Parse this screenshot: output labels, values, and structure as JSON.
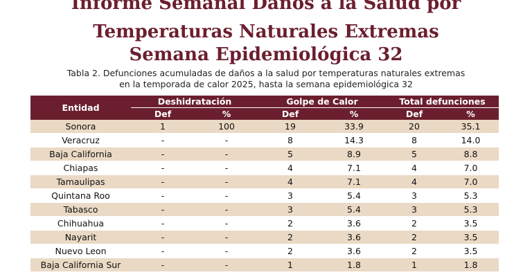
{
  "title": {
    "line1": "Informe Semanal  Daños a la Salud por",
    "line2": "Temperaturas Naturales Extremas",
    "line3": "Semana Epidemiológica 32"
  },
  "caption": {
    "line1": "Tabla 2.  Defunciones acumuladas de daños a la salud por temperaturas naturales extremas",
    "line2": "en la temporada de calor 2025, hasta la semana epidemiológica 32"
  },
  "table": {
    "entity_header": "Entidad",
    "groups": [
      "Deshidratación",
      "Golpe de Calor",
      "Total defunciones"
    ],
    "subheaders": [
      "Def",
      "%",
      "Def",
      "%",
      "Def",
      "%"
    ],
    "rows": [
      {
        "entidad": "Sonora",
        "deh_def": "1",
        "deh_pct": "100",
        "gc_def": "19",
        "gc_pct": "33.9",
        "tot_def": "20",
        "tot_pct": "35.1"
      },
      {
        "entidad": "Veracruz",
        "deh_def": "-",
        "deh_pct": "-",
        "gc_def": "8",
        "gc_pct": "14.3",
        "tot_def": "8",
        "tot_pct": "14.0"
      },
      {
        "entidad": "Baja California",
        "deh_def": "-",
        "deh_pct": "-",
        "gc_def": "5",
        "gc_pct": "8.9",
        "tot_def": "5",
        "tot_pct": "8.8"
      },
      {
        "entidad": "Chiapas",
        "deh_def": "-",
        "deh_pct": "-",
        "gc_def": "4",
        "gc_pct": "7.1",
        "tot_def": "4",
        "tot_pct": "7.0"
      },
      {
        "entidad": "Tamaulipas",
        "deh_def": "-",
        "deh_pct": "-",
        "gc_def": "4",
        "gc_pct": "7.1",
        "tot_def": "4",
        "tot_pct": "7.0"
      },
      {
        "entidad": "Quintana Roo",
        "deh_def": "-",
        "deh_pct": "-",
        "gc_def": "3",
        "gc_pct": "5.4",
        "tot_def": "3",
        "tot_pct": "5.3"
      },
      {
        "entidad": "Tabasco",
        "deh_def": "-",
        "deh_pct": "-",
        "gc_def": "3",
        "gc_pct": "5.4",
        "tot_def": "3",
        "tot_pct": "5.3"
      },
      {
        "entidad": "Chihuahua",
        "deh_def": "-",
        "deh_pct": "-",
        "gc_def": "2",
        "gc_pct": "3.6",
        "tot_def": "2",
        "tot_pct": "3.5"
      },
      {
        "entidad": "Nayarit",
        "deh_def": "-",
        "deh_pct": "-",
        "gc_def": "2",
        "gc_pct": "3.6",
        "tot_def": "2",
        "tot_pct": "3.5"
      },
      {
        "entidad": "Nuevo Leon",
        "deh_def": "-",
        "deh_pct": "-",
        "gc_def": "2",
        "gc_pct": "3.6",
        "tot_def": "2",
        "tot_pct": "3.5"
      },
      {
        "entidad": "Baja California Sur",
        "deh_def": "-",
        "deh_pct": "-",
        "gc_def": "1",
        "gc_pct": "1.8",
        "tot_def": "1",
        "tot_pct": "1.8"
      }
    ]
  },
  "colors": {
    "header_bg": "#6b1f2e",
    "title_text": "#6b1f2e",
    "row_stripe": "#ead9c4"
  }
}
